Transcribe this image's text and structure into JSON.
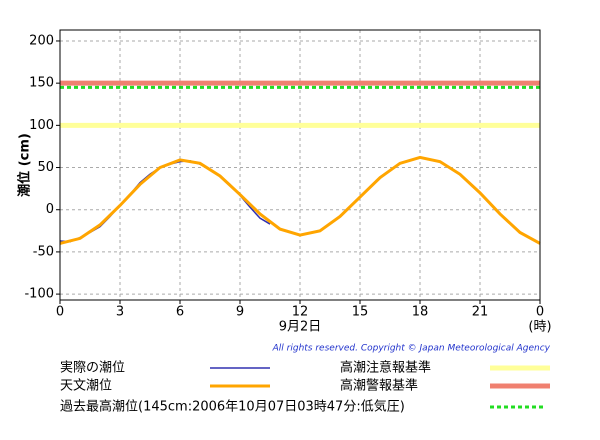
{
  "chart_data": {
    "type": "line",
    "ylabel": "潮位 (cm)",
    "xlabel": "9月2日",
    "xunit": "(時)",
    "copyright": "All rights reserved. Copyright © Japan Meteorological Agency",
    "xlim": [
      0,
      24
    ],
    "xticks": [
      0,
      3,
      6,
      9,
      12,
      15,
      18,
      21,
      {
        "value": 24,
        "label": "0"
      }
    ],
    "ylim": [
      -107,
      213
    ],
    "yticks": [
      -100,
      -50,
      0,
      50,
      100,
      150,
      200
    ],
    "grid": true,
    "series": [
      {
        "name": "実際の潮位",
        "color": "#3030b0",
        "x": [
          0,
          0.5,
          1,
          1.5,
          2,
          2.5,
          3,
          3.5,
          4,
          4.5,
          5,
          5.5,
          6,
          6.5,
          7,
          7.5,
          8,
          8.5,
          9,
          9.5,
          10,
          10.5
        ],
        "values": [
          -37,
          -38,
          -33,
          -27,
          -20,
          -8,
          5,
          18,
          32,
          42,
          50,
          54,
          57,
          58,
          54,
          48,
          40,
          30,
          17,
          3,
          -10,
          -17
        ]
      },
      {
        "name": "天文潮位",
        "color": "#ffa500",
        "x": [
          0,
          1,
          2,
          3,
          4,
          5,
          6,
          7,
          8,
          9,
          10,
          11,
          12,
          13,
          14,
          15,
          16,
          17,
          18,
          19,
          20,
          21,
          22,
          23,
          24
        ],
        "values": [
          -40,
          -34,
          -18,
          5,
          30,
          50,
          59,
          55,
          40,
          18,
          -5,
          -23,
          -30,
          -25,
          -8,
          15,
          38,
          55,
          62,
          57,
          42,
          20,
          -5,
          -27,
          -40
        ]
      }
    ],
    "reference_lines": [
      {
        "name": "高潮注意報基準",
        "value": 100,
        "color": "#ffff99"
      },
      {
        "name": "高潮警報基準",
        "value": 150,
        "color": "#f08070"
      },
      {
        "name": "過去最高潮位(145cm:2006年10月07日03時47分:低気圧)",
        "value": 145,
        "color": "#22dd22",
        "dashed": true
      }
    ]
  }
}
